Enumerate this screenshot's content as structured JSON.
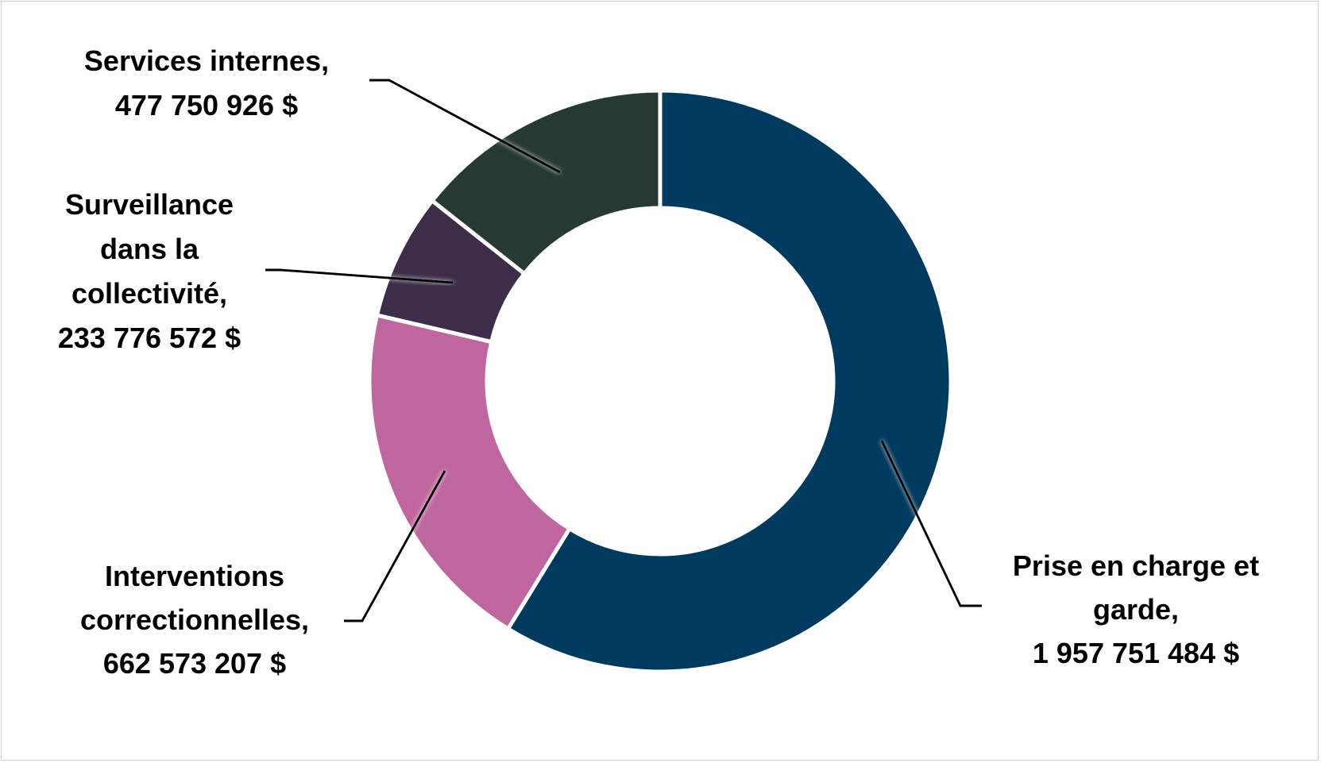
{
  "chart_data": {
    "type": "pie",
    "style": "donut",
    "title": "",
    "slices": [
      {
        "label": [
          "Prise en charge et",
          "garde,",
          "1 957 751 484 $"
        ],
        "value": 1957751484,
        "color": "#003a5f"
      },
      {
        "label": [
          "Interventions",
          "correctionnelles,",
          "662 573 207 $"
        ],
        "value": 662573207,
        "color": "#c0669e"
      },
      {
        "label": [
          "Surveillance",
          "dans la",
          "collectivité,",
          "233 776 572 $"
        ],
        "value": 233776572,
        "color": "#3e2d49"
      },
      {
        "label": [
          "Services internes,",
          "477 750 926 $"
        ],
        "value": 477750926,
        "color": "#263a33"
      }
    ],
    "start_angle_deg": 0,
    "direction": "clockwise"
  }
}
